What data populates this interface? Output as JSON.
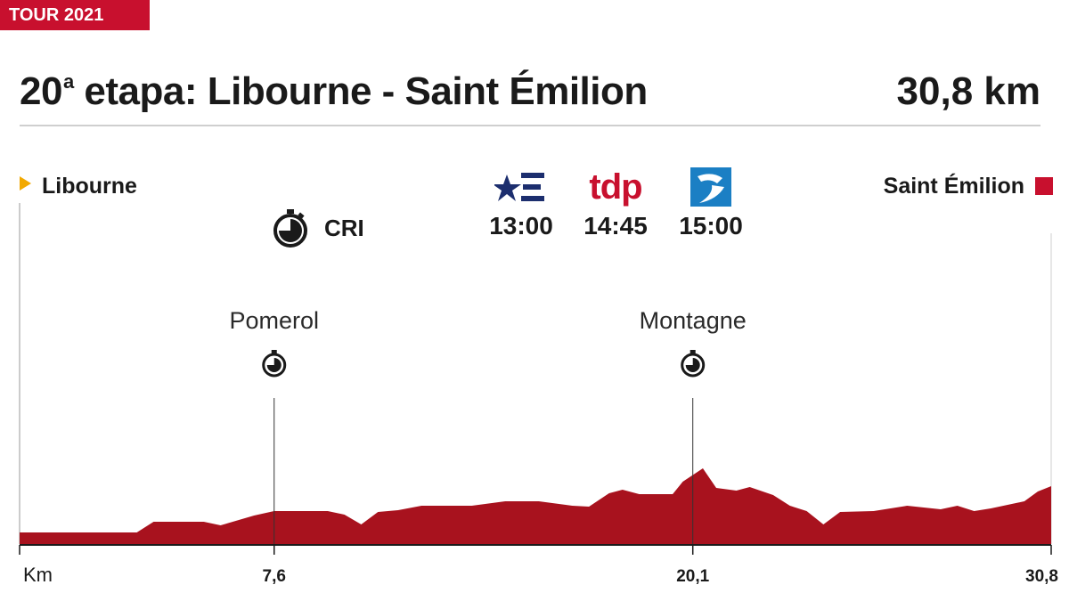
{
  "header": {
    "tag": "TOUR 2021",
    "title_prefix": "20",
    "title_sup": "a",
    "title_rest": " etapa: Libourne - Saint Émilion",
    "distance": "30,8 km"
  },
  "route": {
    "start": "Libourne",
    "finish": "Saint Émilion",
    "stage_type": "CRI"
  },
  "broadcasts": [
    {
      "logo": "eurosport-icon",
      "time": "13:00"
    },
    {
      "logo_text": "tdp",
      "time": "14:45"
    },
    {
      "logo": "gol-tv-icon",
      "time": "15:00"
    }
  ],
  "colors": {
    "accent": "#c8102e",
    "start_marker": "#f2a900",
    "profile": "#a8121e",
    "eurosport": "#1c2e6e",
    "third_logo": "#1b7fc4"
  },
  "chart_data": {
    "type": "area",
    "xlabel": "Km",
    "xlim": [
      0,
      30.8
    ],
    "ticks": [
      {
        "x": 0,
        "label": "Km"
      },
      {
        "x": 7.6,
        "label": "7,6"
      },
      {
        "x": 20.1,
        "label": "20,1"
      },
      {
        "x": 30.8,
        "label": "30,8"
      }
    ],
    "checkpoints": [
      {
        "x": 7.6,
        "name": "Pomerol"
      },
      {
        "x": 20.1,
        "name": "Montagne"
      }
    ],
    "profile": [
      [
        0,
        13
      ],
      [
        3.5,
        13
      ],
      [
        4,
        25
      ],
      [
        5.5,
        25
      ],
      [
        6,
        21
      ],
      [
        7,
        32
      ],
      [
        7.6,
        37
      ],
      [
        9.2,
        37
      ],
      [
        9.7,
        33
      ],
      [
        10.2,
        22
      ],
      [
        10.7,
        36
      ],
      [
        11.3,
        38
      ],
      [
        12,
        43
      ],
      [
        13.5,
        43
      ],
      [
        14.5,
        48
      ],
      [
        15.5,
        48
      ],
      [
        16.5,
        43
      ],
      [
        17,
        42
      ],
      [
        17.6,
        57
      ],
      [
        18,
        61
      ],
      [
        18.5,
        56
      ],
      [
        19.5,
        56
      ],
      [
        19.8,
        70
      ],
      [
        20.4,
        85
      ],
      [
        20.8,
        63
      ],
      [
        21.4,
        60
      ],
      [
        21.8,
        64
      ],
      [
        22.5,
        55
      ],
      [
        23,
        43
      ],
      [
        23.5,
        37
      ],
      [
        24,
        22
      ],
      [
        24.5,
        36
      ],
      [
        25.5,
        37
      ],
      [
        26.5,
        43
      ],
      [
        27.5,
        39
      ],
      [
        28,
        43
      ],
      [
        28.5,
        37
      ],
      [
        29,
        40
      ],
      [
        30,
        48
      ],
      [
        30.4,
        59
      ],
      [
        30.8,
        65
      ]
    ]
  }
}
